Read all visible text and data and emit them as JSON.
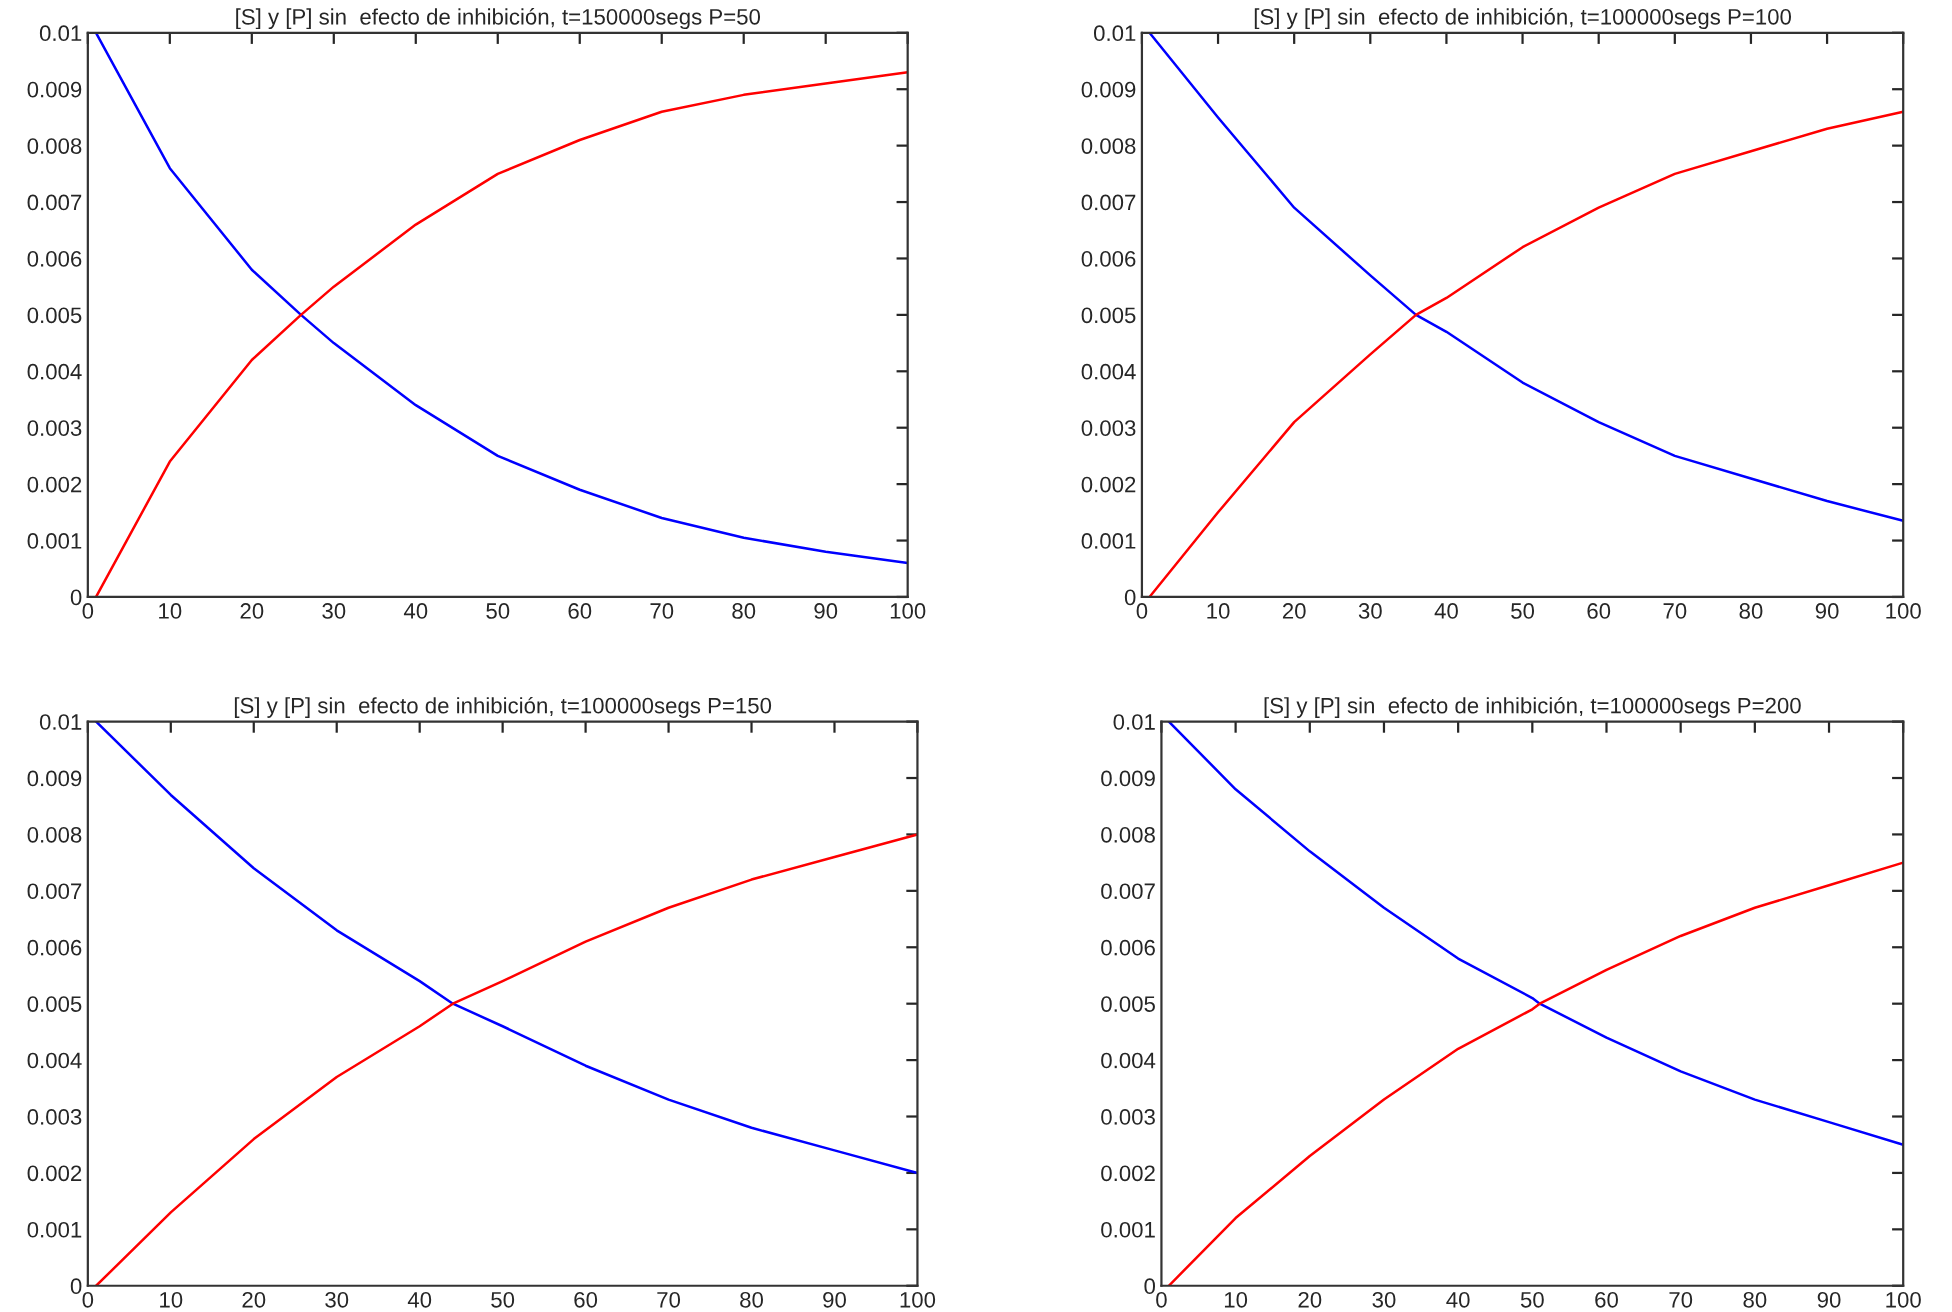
{
  "chart_data": [
    {
      "type": "line",
      "title": "[S] y [P] sin  efecto de inhibición, t=150000segs P=50",
      "xlim": [
        0,
        100
      ],
      "ylim": [
        0,
        0.01
      ],
      "xticks": [
        0,
        10,
        20,
        30,
        40,
        50,
        60,
        70,
        80,
        90,
        100
      ],
      "yticks": [
        0,
        0.001,
        0.002,
        0.003,
        0.004,
        0.005,
        0.006,
        0.007,
        0.008,
        0.009,
        0.01
      ],
      "line_style": "solid",
      "series": [
        {
          "color": "#0000ff",
          "x": [
            1,
            10,
            20,
            26,
            30,
            40,
            50,
            60,
            70,
            80,
            90,
            100
          ],
          "values": [
            0.01,
            0.0076,
            0.0058,
            0.005,
            0.0045,
            0.0034,
            0.0025,
            0.0019,
            0.0014,
            0.00105,
            0.0008,
            0.0006
          ]
        },
        {
          "color": "#ff0000",
          "x": [
            1,
            10,
            20,
            26,
            30,
            40,
            50,
            60,
            70,
            80,
            90,
            100
          ],
          "values": [
            0,
            0.0024,
            0.0042,
            0.005,
            0.0055,
            0.0066,
            0.0075,
            0.0081,
            0.0086,
            0.0089,
            0.0091,
            0.0093
          ]
        }
      ]
    },
    {
      "type": "line",
      "title": "[S] y [P] sin  efecto de inhibición, t=100000segs P=100",
      "xlim": [
        0,
        100
      ],
      "ylim": [
        0,
        0.01
      ],
      "xticks": [
        0,
        10,
        20,
        30,
        40,
        50,
        60,
        70,
        80,
        90,
        100
      ],
      "yticks": [
        0,
        0.001,
        0.002,
        0.003,
        0.004,
        0.005,
        0.006,
        0.007,
        0.008,
        0.009,
        0.01
      ],
      "line_style": "solid",
      "series": [
        {
          "color": "#0000ff",
          "x": [
            1,
            10,
            20,
            30,
            36,
            40,
            50,
            60,
            70,
            80,
            90,
            100
          ],
          "values": [
            0.01,
            0.0085,
            0.0069,
            0.0057,
            0.005,
            0.0047,
            0.0038,
            0.0031,
            0.0025,
            0.0021,
            0.0017,
            0.00135
          ]
        },
        {
          "color": "#ff0000",
          "x": [
            1,
            10,
            20,
            30,
            36,
            40,
            50,
            60,
            70,
            80,
            90,
            100
          ],
          "values": [
            0,
            0.0015,
            0.0031,
            0.0043,
            0.005,
            0.0053,
            0.0062,
            0.0069,
            0.0075,
            0.0079,
            0.0083,
            0.0086
          ]
        }
      ]
    },
    {
      "type": "line",
      "title": "[S] y [P] sin  efecto de inhibición, t=100000segs P=150",
      "xlim": [
        0,
        100
      ],
      "ylim": [
        0,
        0.01
      ],
      "xticks": [
        0,
        10,
        20,
        30,
        40,
        50,
        60,
        70,
        80,
        90,
        100
      ],
      "yticks": [
        0,
        0.001,
        0.002,
        0.003,
        0.004,
        0.005,
        0.006,
        0.007,
        0.008,
        0.009,
        0.01
      ],
      "line_style": "solid",
      "series": [
        {
          "color": "#0000ff",
          "x": [
            1,
            10,
            20,
            30,
            40,
            44,
            50,
            60,
            70,
            80,
            90,
            100
          ],
          "values": [
            0.01,
            0.0087,
            0.0074,
            0.0063,
            0.0054,
            0.005,
            0.0046,
            0.0039,
            0.0033,
            0.0028,
            0.0024,
            0.002
          ]
        },
        {
          "color": "#ff0000",
          "x": [
            1,
            10,
            20,
            30,
            40,
            44,
            50,
            60,
            70,
            80,
            90,
            100
          ],
          "values": [
            0,
            0.0013,
            0.0026,
            0.0037,
            0.0046,
            0.005,
            0.0054,
            0.0061,
            0.0067,
            0.0072,
            0.0076,
            0.008
          ]
        }
      ]
    },
    {
      "type": "line",
      "title": "[S] y [P] sin  efecto de inhibición, t=100000segs P=200",
      "xlim": [
        0,
        100
      ],
      "ylim": [
        0,
        0.01
      ],
      "xticks": [
        0,
        10,
        20,
        30,
        40,
        50,
        60,
        70,
        80,
        90,
        100
      ],
      "yticks": [
        0,
        0.001,
        0.002,
        0.003,
        0.004,
        0.005,
        0.006,
        0.007,
        0.008,
        0.009,
        0.01
      ],
      "line_style": "solid",
      "series": [
        {
          "color": "#0000ff",
          "x": [
            1,
            10,
            20,
            30,
            40,
            50,
            51,
            60,
            70,
            80,
            90,
            100
          ],
          "values": [
            0.01,
            0.0088,
            0.0077,
            0.0067,
            0.0058,
            0.0051,
            0.005,
            0.0044,
            0.0038,
            0.0033,
            0.0029,
            0.0025
          ]
        },
        {
          "color": "#ff0000",
          "x": [
            1,
            10,
            20,
            30,
            40,
            50,
            51,
            60,
            70,
            80,
            90,
            100
          ],
          "values": [
            0,
            0.0012,
            0.0023,
            0.0033,
            0.0042,
            0.0049,
            0.005,
            0.0056,
            0.0062,
            0.0067,
            0.0071,
            0.0075
          ]
        }
      ]
    }
  ]
}
